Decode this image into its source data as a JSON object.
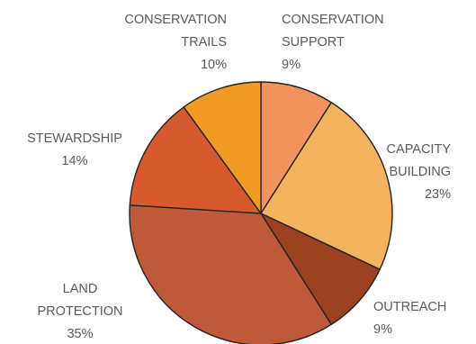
{
  "chart_data": {
    "type": "pie",
    "start_angle_deg": 0,
    "direction": "clockwise",
    "slices": [
      {
        "label": [
          "CONSERVATION",
          "SUPPORT"
        ],
        "percent_text": "9%",
        "value": 9,
        "color": "#F2935B"
      },
      {
        "label": [
          "CAPACITY",
          "BUILDING"
        ],
        "percent_text": "23%",
        "value": 23,
        "color": "#F2B25E"
      },
      {
        "label": [
          "OUTREACH"
        ],
        "percent_text": "9%",
        "value": 9,
        "color": "#9B4120"
      },
      {
        "label": [
          "LAND",
          "PROTECTION"
        ],
        "percent_text": "35%",
        "value": 35,
        "color": "#BE5A3A"
      },
      {
        "label": [
          "STEWARDSHIP"
        ],
        "percent_text": "14%",
        "value": 14,
        "color": "#D65A2E"
      },
      {
        "label": [
          "CONSERVATION",
          "TRAILS"
        ],
        "percent_text": "10%",
        "value": 10,
        "color": "#F19A24"
      }
    ]
  }
}
